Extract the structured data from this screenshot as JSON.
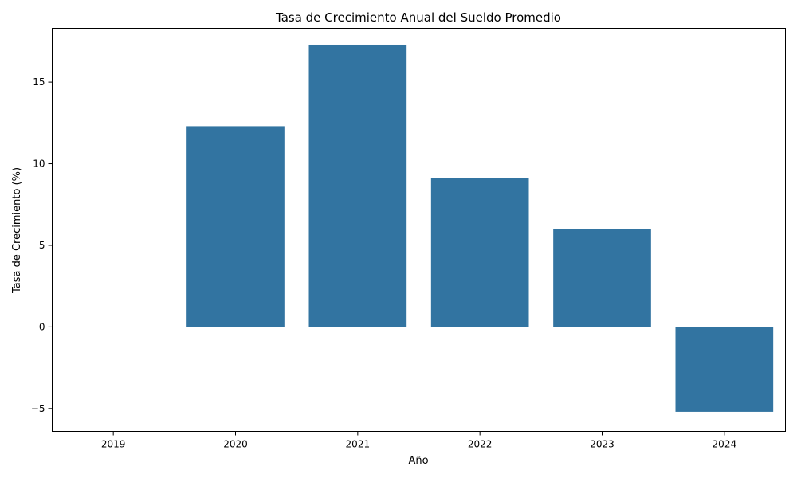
{
  "chart_data": {
    "type": "bar",
    "title": "Tasa de Crecimiento Anual del Sueldo Promedio",
    "xlabel": "Año",
    "ylabel": "Tasa de Crecimiento (%)",
    "categories": [
      "2019",
      "2020",
      "2021",
      "2022",
      "2023",
      "2024"
    ],
    "values": [
      null,
      12.3,
      17.3,
      9.1,
      6.0,
      -5.2
    ],
    "ylim": [
      -6.4,
      18.3
    ],
    "yticks": [
      -5,
      0,
      5,
      10,
      15
    ],
    "ytick_labels": [
      "−5",
      "0",
      "5",
      "10",
      "15"
    ],
    "bar_color": "#3274a1",
    "grid": false,
    "legend": "none"
  }
}
